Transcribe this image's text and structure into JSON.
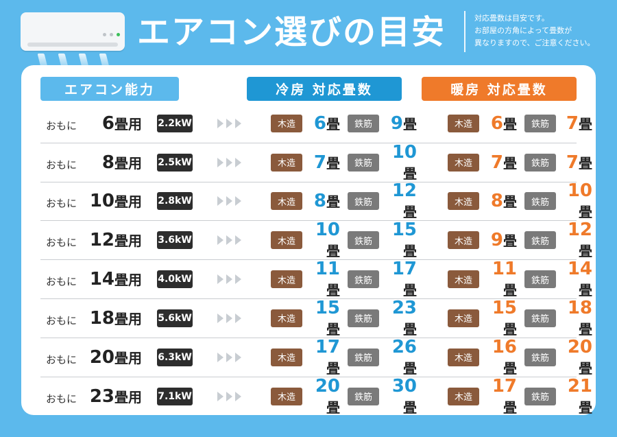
{
  "title": "エアコン選びの目安",
  "note_lines": [
    "対応畳数は目安です。",
    "お部屋の方角によって畳数が",
    "異なりますので、ご注意ください。"
  ],
  "headers": {
    "capacity": "エアコン能力",
    "cooling": "冷房 対応畳数",
    "heating": "暖房 対応畳数"
  },
  "labels": {
    "prefix": "おもに",
    "size_unit": "畳用",
    "tatami_unit": "畳",
    "wood": "木造",
    "steel": "鉄筋"
  },
  "colors": {
    "background": "#5cb9ec",
    "cooling": "#1f97d4",
    "heating": "#ef7a2a",
    "wood_tag": "#8a5a3c",
    "steel_tag": "#7a7a7a"
  },
  "rows": [
    {
      "size": "6",
      "kw": "2.2kW",
      "cool_wood": "6",
      "cool_steel": "9",
      "heat_wood": "6",
      "heat_steel": "7"
    },
    {
      "size": "8",
      "kw": "2.5kW",
      "cool_wood": "7",
      "cool_steel": "10",
      "heat_wood": "7",
      "heat_steel": "7"
    },
    {
      "size": "10",
      "kw": "2.8kW",
      "cool_wood": "8",
      "cool_steel": "12",
      "heat_wood": "8",
      "heat_steel": "10"
    },
    {
      "size": "12",
      "kw": "3.6kW",
      "cool_wood": "10",
      "cool_steel": "15",
      "heat_wood": "9",
      "heat_steel": "12"
    },
    {
      "size": "14",
      "kw": "4.0kW",
      "cool_wood": "11",
      "cool_steel": "17",
      "heat_wood": "11",
      "heat_steel": "14"
    },
    {
      "size": "18",
      "kw": "5.6kW",
      "cool_wood": "15",
      "cool_steel": "23",
      "heat_wood": "15",
      "heat_steel": "18"
    },
    {
      "size": "20",
      "kw": "6.3kW",
      "cool_wood": "17",
      "cool_steel": "26",
      "heat_wood": "16",
      "heat_steel": "20"
    },
    {
      "size": "23",
      "kw": "7.1kW",
      "cool_wood": "20",
      "cool_steel": "30",
      "heat_wood": "17",
      "heat_steel": "21"
    }
  ]
}
